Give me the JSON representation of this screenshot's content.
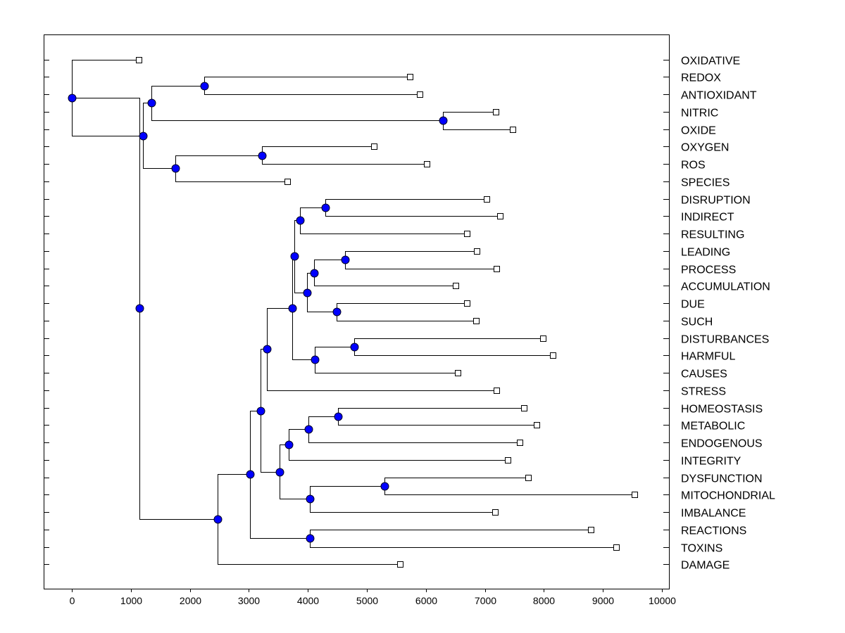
{
  "chart_data": {
    "type": "dendrogram",
    "title": "",
    "xlabel": "",
    "ylabel": "",
    "xlim": [
      -450,
      10000
    ],
    "x_ticks": [
      0,
      1000,
      2000,
      3000,
      4000,
      5000,
      6000,
      7000,
      8000,
      9000,
      10000
    ],
    "x_tick_labels": [
      "0",
      "1000",
      "2000",
      "3000",
      "4000",
      "5000",
      "6000",
      "7000",
      "8000",
      "9000",
      "10000"
    ],
    "leaves": [
      {
        "label": "OXIDATIVE",
        "x": 1130
      },
      {
        "label": "REDOX",
        "x": 5730
      },
      {
        "label": "ANTIOXIDANT",
        "x": 5900
      },
      {
        "label": "NITRIC",
        "x": 7180
      },
      {
        "label": "OXIDE",
        "x": 7470
      },
      {
        "label": "OXYGEN",
        "x": 5120
      },
      {
        "label": "ROS",
        "x": 6020
      },
      {
        "label": "SPECIES",
        "x": 3650
      },
      {
        "label": "DISRUPTION",
        "x": 7030
      },
      {
        "label": "INDIRECT",
        "x": 7250
      },
      {
        "label": "RESULTING",
        "x": 6700
      },
      {
        "label": "LEADING",
        "x": 6860
      },
      {
        "label": "PROCESS",
        "x": 7200
      },
      {
        "label": "ACCUMULATION",
        "x": 6500
      },
      {
        "label": "DUE",
        "x": 6690
      },
      {
        "label": "SUCH",
        "x": 6850
      },
      {
        "label": "DISTURBANCES",
        "x": 7980
      },
      {
        "label": "HARMFUL",
        "x": 8150
      },
      {
        "label": "CAUSES",
        "x": 6540
      },
      {
        "label": "STRESS",
        "x": 7190
      },
      {
        "label": "HOMEOSTASIS",
        "x": 7660
      },
      {
        "label": "METABOLIC",
        "x": 7880
      },
      {
        "label": "ENDOGENOUS",
        "x": 7590
      },
      {
        "label": "INTEGRITY",
        "x": 7390
      },
      {
        "label": "DYSFUNCTION",
        "x": 7730
      },
      {
        "label": "MITOCHONDRIAL",
        "x": 9530
      },
      {
        "label": "IMBALANCE",
        "x": 7170
      },
      {
        "label": "REACTIONS",
        "x": 8800
      },
      {
        "label": "TOXINS",
        "x": 9220
      },
      {
        "label": "DAMAGE",
        "x": 5560
      }
    ],
    "merges": [
      {
        "id": "n_redox_antiox",
        "x": 2240,
        "children": [
          1,
          2
        ]
      },
      {
        "id": "n_nitric_oxide",
        "x": 6290,
        "children": [
          3,
          4
        ]
      },
      {
        "id": "n_redox_nitric",
        "x": 1350,
        "children": [
          "n_redox_antiox",
          "n_nitric_oxide"
        ]
      },
      {
        "id": "n_oxygen_ros",
        "x": 3220,
        "children": [
          5,
          6
        ]
      },
      {
        "id": "n_oxygen_species",
        "x": 1750,
        "children": [
          "n_oxygen_ros",
          7
        ]
      },
      {
        "id": "n_upper",
        "x": 1200,
        "children": [
          "n_redox_nitric",
          "n_oxygen_species"
        ]
      },
      {
        "id": "n_root",
        "x": 0,
        "children": [
          0,
          "n_upper"
        ]
      },
      {
        "id": "n_disr_indir",
        "x": 4300,
        "children": [
          8,
          9
        ]
      },
      {
        "id": "n_disr_result",
        "x": 3870,
        "children": [
          "n_disr_indir",
          10
        ]
      },
      {
        "id": "n_lead_proc",
        "x": 4630,
        "children": [
          11,
          12
        ]
      },
      {
        "id": "n_lead_accum",
        "x": 4100,
        "children": [
          "n_lead_proc",
          13
        ]
      },
      {
        "id": "n_due_such",
        "x": 4490,
        "children": [
          14,
          15
        ]
      },
      {
        "id": "n_lead_due",
        "x": 3980,
        "children": [
          "n_lead_accum",
          "n_due_such"
        ]
      },
      {
        "id": "n_disr_lead",
        "x": 3770,
        "children": [
          "n_disr_result",
          "n_lead_due"
        ]
      },
      {
        "id": "n_dist_harm",
        "x": 4790,
        "children": [
          16,
          17
        ]
      },
      {
        "id": "n_dist_causes",
        "x": 4120,
        "children": [
          "n_dist_harm",
          18
        ]
      },
      {
        "id": "n_mid",
        "x": 3730,
        "children": [
          "n_disr_lead",
          "n_dist_causes"
        ]
      },
      {
        "id": "n_mid_stress",
        "x": 3300,
        "children": [
          "n_mid",
          19
        ]
      },
      {
        "id": "n_homeo_metab",
        "x": 4510,
        "children": [
          20,
          21
        ]
      },
      {
        "id": "n_homeo_endo",
        "x": 4010,
        "children": [
          "n_homeo_metab",
          22
        ]
      },
      {
        "id": "n_homeo_integ",
        "x": 3680,
        "children": [
          "n_homeo_endo",
          23
        ]
      },
      {
        "id": "n_dysf_mito",
        "x": 5300,
        "children": [
          24,
          25
        ]
      },
      {
        "id": "n_dysf_imbal",
        "x": 4030,
        "children": [
          "n_dysf_mito",
          26
        ]
      },
      {
        "id": "n_homeo_dysf",
        "x": 3520,
        "children": [
          "n_homeo_integ",
          "n_dysf_imbal"
        ]
      },
      {
        "id": "n_stress_homeo",
        "x": 3200,
        "children": [
          "n_mid_stress",
          "n_homeo_dysf"
        ]
      },
      {
        "id": "n_react_toxins",
        "x": 4030,
        "children": [
          27,
          28
        ]
      },
      {
        "id": "n_lower_react",
        "x": 3020,
        "children": [
          "n_stress_homeo",
          "n_react_toxins"
        ]
      },
      {
        "id": "n_lower",
        "x": 2470,
        "children": [
          "n_lower_react",
          29
        ]
      },
      {
        "id": "n_top",
        "x": 1140,
        "children": [
          "n_root",
          "n_lower"
        ]
      }
    ]
  }
}
